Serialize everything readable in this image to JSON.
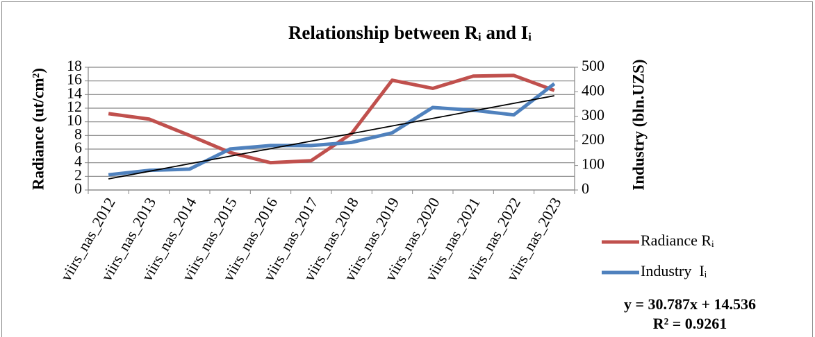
{
  "chart_data": {
    "type": "line",
    "title": "Relationship between Rᵢ and Iᵢ",
    "y_label": "Radiance (ut/cm²)",
    "y2_label": "Industry (bln.UZS)",
    "categories": [
      "viirs_nas_2012",
      "viirs_nas_2013",
      "viirs_nas_2014",
      "viirs_nas_2015",
      "viirs_nas_2016",
      "viirs_nas_2017",
      "viirs_nas_2018",
      "viirs_nas_2019",
      "viirs_nas_2020",
      "viirs_nas_2021",
      "viirs_nas_2022",
      "viirs_nas_2023"
    ],
    "series": [
      {
        "name": "Radiance Rᵢ",
        "color": "#c0504d",
        "values": [
          11.2,
          10.4,
          8.0,
          5.5,
          4.0,
          4.3,
          8.3,
          16.1,
          14.9,
          16.7,
          16.8,
          14.6
        ]
      },
      {
        "name": "Industry  Iᵢ",
        "color": "#4f81bd",
        "axis": "y2",
        "values": [
          62,
          80,
          85,
          167,
          181,
          181,
          194,
          233,
          336,
          325,
          306,
          433
        ]
      }
    ],
    "trendline": {
      "color": "#000000",
      "axis": "y2",
      "values": [
        45.3,
        76.1,
        106.9,
        137.7,
        168.5,
        199.3,
        230.0,
        260.8,
        291.6,
        322.4,
        353.2,
        384.0
      ]
    },
    "annotations": [
      "y = 30.787x + 14.536",
      "R² = 0.9261"
    ],
    "ylim": [
      0,
      18
    ],
    "yticks": [
      0,
      2,
      4,
      6,
      8,
      10,
      12,
      14,
      16,
      18
    ],
    "y2lim": [
      0,
      500
    ],
    "y2ticks": [
      0,
      100,
      200,
      300,
      400,
      500
    ],
    "grid": true,
    "legend": "right"
  }
}
